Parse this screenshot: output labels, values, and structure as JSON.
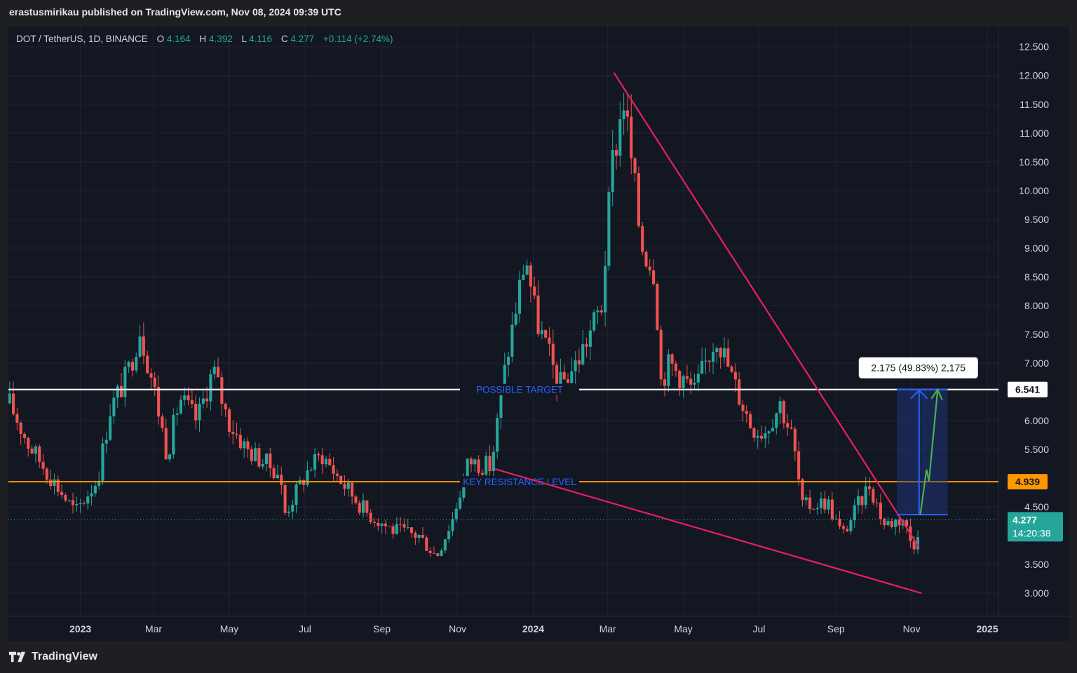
{
  "header": {
    "published": "erastusmirikau published on TradingView.com, Nov 08, 2024 09:39 UTC"
  },
  "legend": {
    "symbol": "DOT / TetherUS, 1D, BINANCE",
    "o_label": "O",
    "o_value": "4.164",
    "h_label": "H",
    "h_value": "4.392",
    "l_label": "L",
    "l_value": "4.116",
    "c_label": "C",
    "c_value": "4.277",
    "change": "+0.114 (+2.74%)"
  },
  "footer": {
    "brand": "TradingView"
  },
  "colors": {
    "background": "#131722",
    "up": "#26a69a",
    "down": "#ef5350",
    "trendline": "#e91e63",
    "target_line": "#ffffff",
    "resistance_line": "#ff9800",
    "measure_fill": "#1e3a8a",
    "measure_arrow": "#2962ff",
    "projection_arrow": "#4caf50",
    "annotation_text": "#2962ff"
  },
  "chart_data": {
    "type": "candlestick",
    "y_ticks": [
      "12.500",
      "12.000",
      "11.500",
      "11.000",
      "10.500",
      "10.000",
      "9.500",
      "9.000",
      "8.500",
      "8.000",
      "7.500",
      "7.000",
      "6.000",
      "5.500",
      "4.500",
      "3.500",
      "3.000"
    ],
    "y_tick_values": [
      12.5,
      12,
      11.5,
      11,
      10.5,
      10,
      9.5,
      9,
      8.5,
      8,
      7.5,
      7,
      6,
      5.5,
      4.5,
      3.5,
      3
    ],
    "ylim": [
      2.6,
      12.85
    ],
    "x_labels": [
      "2023",
      "Mar",
      "May",
      "Jul",
      "Sep",
      "Nov",
      "2024",
      "Mar",
      "May",
      "Jul",
      "Sep",
      "Nov",
      "2025"
    ],
    "x_label_dates": [
      "2023-01-01",
      "2023-03-01",
      "2023-05-01",
      "2023-07-01",
      "2023-09-01",
      "2023-11-01",
      "2024-01-01",
      "2024-03-01",
      "2024-05-01",
      "2024-07-01",
      "2024-09-01",
      "2024-11-01",
      "2025-01-01"
    ],
    "x_range": [
      "2022-11-04",
      "2025-01-10"
    ],
    "price_path": [
      [
        "2022-11-05",
        6.3
      ],
      [
        "2022-11-20",
        5.6
      ],
      [
        "2022-12-12",
        4.9
      ],
      [
        "2022-12-28",
        4.4
      ],
      [
        "2023-01-15",
        5.0
      ],
      [
        "2023-01-25",
        6.2
      ],
      [
        "2023-02-08",
        6.8
      ],
      [
        "2023-02-18",
        7.6
      ],
      [
        "2023-03-01",
        6.6
      ],
      [
        "2023-03-12",
        5.4
      ],
      [
        "2023-03-22",
        6.4
      ],
      [
        "2023-04-05",
        6.0
      ],
      [
        "2023-04-18",
        6.9
      ],
      [
        "2023-04-30",
        6.0
      ],
      [
        "2023-05-15",
        5.5
      ],
      [
        "2023-06-10",
        5.1
      ],
      [
        "2023-06-15",
        4.4
      ],
      [
        "2023-07-05",
        5.2
      ],
      [
        "2023-07-15",
        5.4
      ],
      [
        "2023-08-01",
        4.9
      ],
      [
        "2023-08-20",
        4.4
      ],
      [
        "2023-09-10",
        4.1
      ],
      [
        "2023-10-01",
        4.0
      ],
      [
        "2023-10-15",
        3.65
      ],
      [
        "2023-10-28",
        4.3
      ],
      [
        "2023-11-10",
        5.3
      ],
      [
        "2023-11-28",
        5.2
      ],
      [
        "2023-12-10",
        7.0
      ],
      [
        "2023-12-26",
        8.9
      ],
      [
        "2024-01-03",
        7.8
      ],
      [
        "2024-01-22",
        6.6
      ],
      [
        "2024-02-05",
        7.0
      ],
      [
        "2024-02-25",
        8.0
      ],
      [
        "2024-03-05",
        10.5
      ],
      [
        "2024-03-14",
        11.6
      ],
      [
        "2024-03-28",
        9.1
      ],
      [
        "2024-04-08",
        8.6
      ],
      [
        "2024-04-13",
        6.7
      ],
      [
        "2024-04-20",
        7.0
      ],
      [
        "2024-05-10",
        6.5
      ],
      [
        "2024-05-28",
        7.5
      ],
      [
        "2024-06-10",
        6.7
      ],
      [
        "2024-06-25",
        5.9
      ],
      [
        "2024-07-05",
        5.8
      ],
      [
        "2024-07-18",
        6.3
      ],
      [
        "2024-07-28",
        5.7
      ],
      [
        "2024-08-05",
        4.5
      ],
      [
        "2024-08-25",
        4.6
      ],
      [
        "2024-09-06",
        4.0
      ],
      [
        "2024-09-28",
        4.9
      ],
      [
        "2024-10-10",
        4.2
      ],
      [
        "2024-10-25",
        4.3
      ],
      [
        "2024-11-02",
        3.8
      ],
      [
        "2024-11-08",
        4.277
      ]
    ],
    "candle_step_days": 3,
    "random_seed": 17,
    "horizontal_levels": [
      {
        "value": 6.541,
        "label": "POSSIBLE TARGET",
        "tag": "6.541",
        "line_color": "#ffffff",
        "tag_bg": "#ffffff",
        "tag_color": "#131722",
        "label_date": "2023-12-21"
      },
      {
        "value": 4.939,
        "label": "KEY RESISTANCE LEVEL",
        "tag": "4.939",
        "line_color": "#ff9800",
        "tag_bg": "#ff9800",
        "tag_color": "#131722",
        "label_date": "2023-12-21"
      }
    ],
    "last_price": {
      "value": 4.277,
      "tag": "4.277",
      "countdown": "14:20:38",
      "tag_bg": "#26a69a"
    },
    "trendlines": [
      {
        "from": [
          "2024-03-06",
          12.05
        ],
        "to": [
          "2024-11-07",
          3.8
        ]
      },
      {
        "from": [
          "2023-12-01",
          5.16
        ],
        "to": [
          "2024-11-09",
          3.0
        ]
      }
    ],
    "measure": {
      "from_date": "2024-10-20",
      "to_date": "2024-11-30",
      "low": 4.366,
      "high": 6.541,
      "arrow_date": "2024-11-07",
      "label": "2.175 (49.83%) 2,175"
    },
    "projection": [
      [
        "2024-11-08",
        4.366
      ],
      [
        "2024-11-13",
        5.15
      ],
      [
        "2024-11-15",
        4.95
      ],
      [
        "2024-11-22",
        6.541
      ]
    ]
  }
}
